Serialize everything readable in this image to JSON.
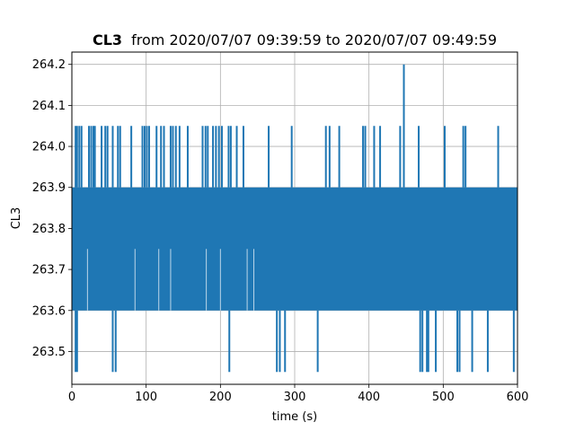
{
  "chart_data": {
    "type": "line",
    "title_bold": "CL3",
    "title_rest": "from 2020/07/07 09:39:59 to 2020/07/07 09:49:59",
    "xlabel": "time (s)",
    "ylabel": "CL3",
    "xlim": [
      0,
      600
    ],
    "ylim": [
      263.42,
      264.23
    ],
    "x_ticks": [
      0,
      100,
      200,
      300,
      400,
      500,
      600
    ],
    "y_ticks": [
      263.5,
      263.6,
      263.7,
      263.8,
      263.9,
      264.0,
      264.1,
      264.2
    ],
    "grid": true,
    "series_color": "#1f77b4",
    "series": [
      {
        "band_low": 263.6,
        "band_high": 263.9,
        "peak": {
          "x": 447,
          "y": 264.2
        },
        "spikes_up": [
          {
            "x": 5,
            "y": 264.05
          },
          {
            "x": 7,
            "y": 264.05
          },
          {
            "x": 10,
            "y": 264.05
          },
          {
            "x": 13,
            "y": 264.05
          },
          {
            "x": 23,
            "y": 264.05
          },
          {
            "x": 26,
            "y": 264.05
          },
          {
            "x": 29,
            "y": 264.05
          },
          {
            "x": 31,
            "y": 264.05
          },
          {
            "x": 40,
            "y": 264.05
          },
          {
            "x": 45,
            "y": 264.05
          },
          {
            "x": 48,
            "y": 264.05
          },
          {
            "x": 55,
            "y": 264.05
          },
          {
            "x": 62,
            "y": 264.05
          },
          {
            "x": 65,
            "y": 264.05
          },
          {
            "x": 80,
            "y": 264.05
          },
          {
            "x": 95,
            "y": 264.05
          },
          {
            "x": 98,
            "y": 264.05
          },
          {
            "x": 101,
            "y": 264.05
          },
          {
            "x": 104,
            "y": 264.05
          },
          {
            "x": 114,
            "y": 264.05
          },
          {
            "x": 120,
            "y": 264.05
          },
          {
            "x": 124,
            "y": 264.05
          },
          {
            "x": 133,
            "y": 264.05
          },
          {
            "x": 136,
            "y": 264.05
          },
          {
            "x": 140,
            "y": 264.05
          },
          {
            "x": 145,
            "y": 264.05
          },
          {
            "x": 156,
            "y": 264.05
          },
          {
            "x": 176,
            "y": 264.05
          },
          {
            "x": 180,
            "y": 264.05
          },
          {
            "x": 183,
            "y": 264.05
          },
          {
            "x": 190,
            "y": 264.05
          },
          {
            "x": 194,
            "y": 264.05
          },
          {
            "x": 198,
            "y": 264.05
          },
          {
            "x": 202,
            "y": 264.05
          },
          {
            "x": 211,
            "y": 264.05
          },
          {
            "x": 214,
            "y": 264.05
          },
          {
            "x": 222,
            "y": 264.05
          },
          {
            "x": 231,
            "y": 264.05
          },
          {
            "x": 265,
            "y": 264.05
          },
          {
            "x": 296,
            "y": 264.05
          },
          {
            "x": 342,
            "y": 264.05
          },
          {
            "x": 347,
            "y": 264.05
          },
          {
            "x": 360,
            "y": 264.05
          },
          {
            "x": 392,
            "y": 264.05
          },
          {
            "x": 395,
            "y": 264.05
          },
          {
            "x": 407,
            "y": 264.05
          },
          {
            "x": 415,
            "y": 264.05
          },
          {
            "x": 442,
            "y": 264.05
          },
          {
            "x": 467,
            "y": 264.05
          },
          {
            "x": 502,
            "y": 264.05
          },
          {
            "x": 527,
            "y": 264.05
          },
          {
            "x": 530,
            "y": 264.05
          },
          {
            "x": 574,
            "y": 264.05
          }
        ],
        "spikes_down": [
          {
            "x": 5,
            "y": 263.45
          },
          {
            "x": 7,
            "y": 263.45
          },
          {
            "x": 55,
            "y": 263.45
          },
          {
            "x": 59,
            "y": 263.45
          },
          {
            "x": 212,
            "y": 263.45
          },
          {
            "x": 276,
            "y": 263.45
          },
          {
            "x": 280,
            "y": 263.45
          },
          {
            "x": 287,
            "y": 263.45
          },
          {
            "x": 331,
            "y": 263.45
          },
          {
            "x": 469,
            "y": 263.45
          },
          {
            "x": 472,
            "y": 263.45
          },
          {
            "x": 478,
            "y": 263.45
          },
          {
            "x": 480,
            "y": 263.45
          },
          {
            "x": 490,
            "y": 263.45
          },
          {
            "x": 519,
            "y": 263.45
          },
          {
            "x": 522,
            "y": 263.45
          },
          {
            "x": 539,
            "y": 263.45
          },
          {
            "x": 560,
            "y": 263.45
          },
          {
            "x": 595,
            "y": 263.45
          }
        ],
        "mid_spikes": [
          {
            "x": 21,
            "y": 263.75
          },
          {
            "x": 85,
            "y": 263.75
          },
          {
            "x": 117,
            "y": 263.75
          },
          {
            "x": 133,
            "y": 263.75
          },
          {
            "x": 181,
            "y": 263.75
          },
          {
            "x": 200,
            "y": 263.75
          },
          {
            "x": 236,
            "y": 263.75
          },
          {
            "x": 245,
            "y": 263.75
          }
        ]
      }
    ]
  }
}
